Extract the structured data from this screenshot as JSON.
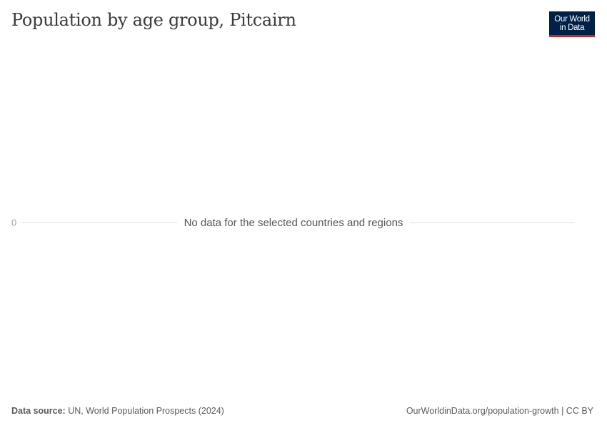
{
  "title": "Population by age group, Pitcairn",
  "logo": {
    "line1": "Our World",
    "line2": "in Data"
  },
  "chart_data": {
    "type": "line",
    "title": "Population by age group, Pitcairn",
    "series": [],
    "y_ticks": [
      "0"
    ],
    "message": "No data for the selected countries and regions",
    "grid": true
  },
  "footer": {
    "source_label": "Data source:",
    "source_text": "UN, World Population Prospects (2024)",
    "url": "OurWorldinData.org/population-growth",
    "license": "CC BY"
  },
  "colors": {
    "logo_bg": "#002147",
    "logo_accent": "#ce261e",
    "gridline": "#dddddd"
  }
}
